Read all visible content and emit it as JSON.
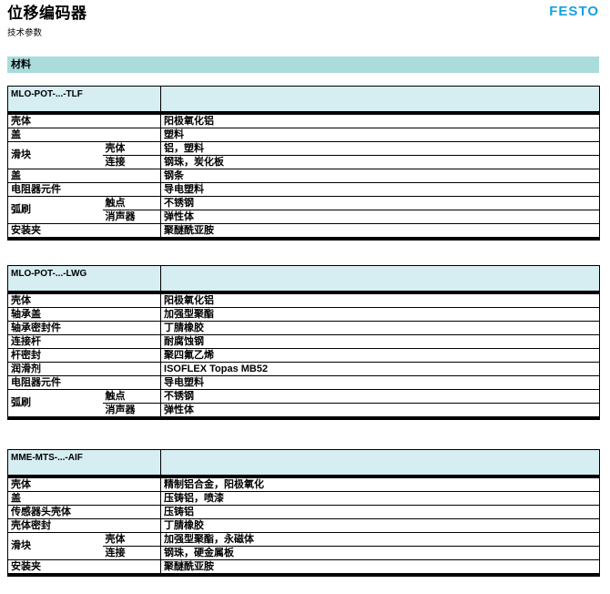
{
  "page": {
    "title": "位移编码器",
    "subtitle": "技术参数",
    "brand": "FESTO",
    "section_header": "材料"
  },
  "colors": {
    "brand_blue": "#18a0e0",
    "section_band_bg": "#a9dcdb",
    "table_header_bg": "#d6edf1"
  },
  "tables": [
    {
      "model": "MLO-POT-...-TLF",
      "rows": [
        {
          "label": "壳体",
          "value": "阳极氧化铝"
        },
        {
          "label": "盖",
          "value": "塑料"
        },
        {
          "label": "滑块",
          "sublabel": "壳体",
          "value": "铝，塑料"
        },
        {
          "sublabel": "连接",
          "value": "钢珠，炭化板"
        },
        {
          "label": "盖",
          "value": "钢条"
        },
        {
          "label": "电阻器元件",
          "value": "导电塑料"
        },
        {
          "label": "弧刷",
          "sublabel": "触点",
          "value": "不锈钢"
        },
        {
          "sublabel": "消声器",
          "value": "弹性体"
        },
        {
          "label": "安装夹",
          "value": "聚醚酰亚胺"
        }
      ]
    },
    {
      "model": "MLO-POT-...-LWG",
      "rows": [
        {
          "label": "壳体",
          "value": "阳极氧化铝"
        },
        {
          "label": "轴承盖",
          "value": "加强型聚酯"
        },
        {
          "label": "轴承密封件",
          "value": "丁腈橡胶"
        },
        {
          "label": "连接杆",
          "value": "耐腐蚀钢"
        },
        {
          "label": "杆密封",
          "value": "聚四氟乙烯"
        },
        {
          "label": "润滑剂",
          "value": "ISOFLEX Topas MB52"
        },
        {
          "label": "电阻器元件",
          "value": "导电塑料"
        },
        {
          "label": "弧刷",
          "sublabel": "触点",
          "value": "不锈钢"
        },
        {
          "sublabel": "消声器",
          "value": "弹性体"
        }
      ]
    },
    {
      "model": "MME-MTS-...-AIF",
      "rows": [
        {
          "label": "壳体",
          "value": "精制铝合金，阳极氧化"
        },
        {
          "label": "盖",
          "value": "压铸铝，喷漆"
        },
        {
          "label": "传感器头壳体",
          "value": "压铸铝"
        },
        {
          "label": "壳体密封",
          "value": "丁腈橡胶"
        },
        {
          "label": "滑块",
          "sublabel": "壳体",
          "value": "加强型聚酯，永磁体"
        },
        {
          "sublabel": "连接",
          "value": "钢珠，硬金属板"
        },
        {
          "label": "安装夹",
          "value": "聚醚酰亚胺"
        }
      ]
    }
  ]
}
